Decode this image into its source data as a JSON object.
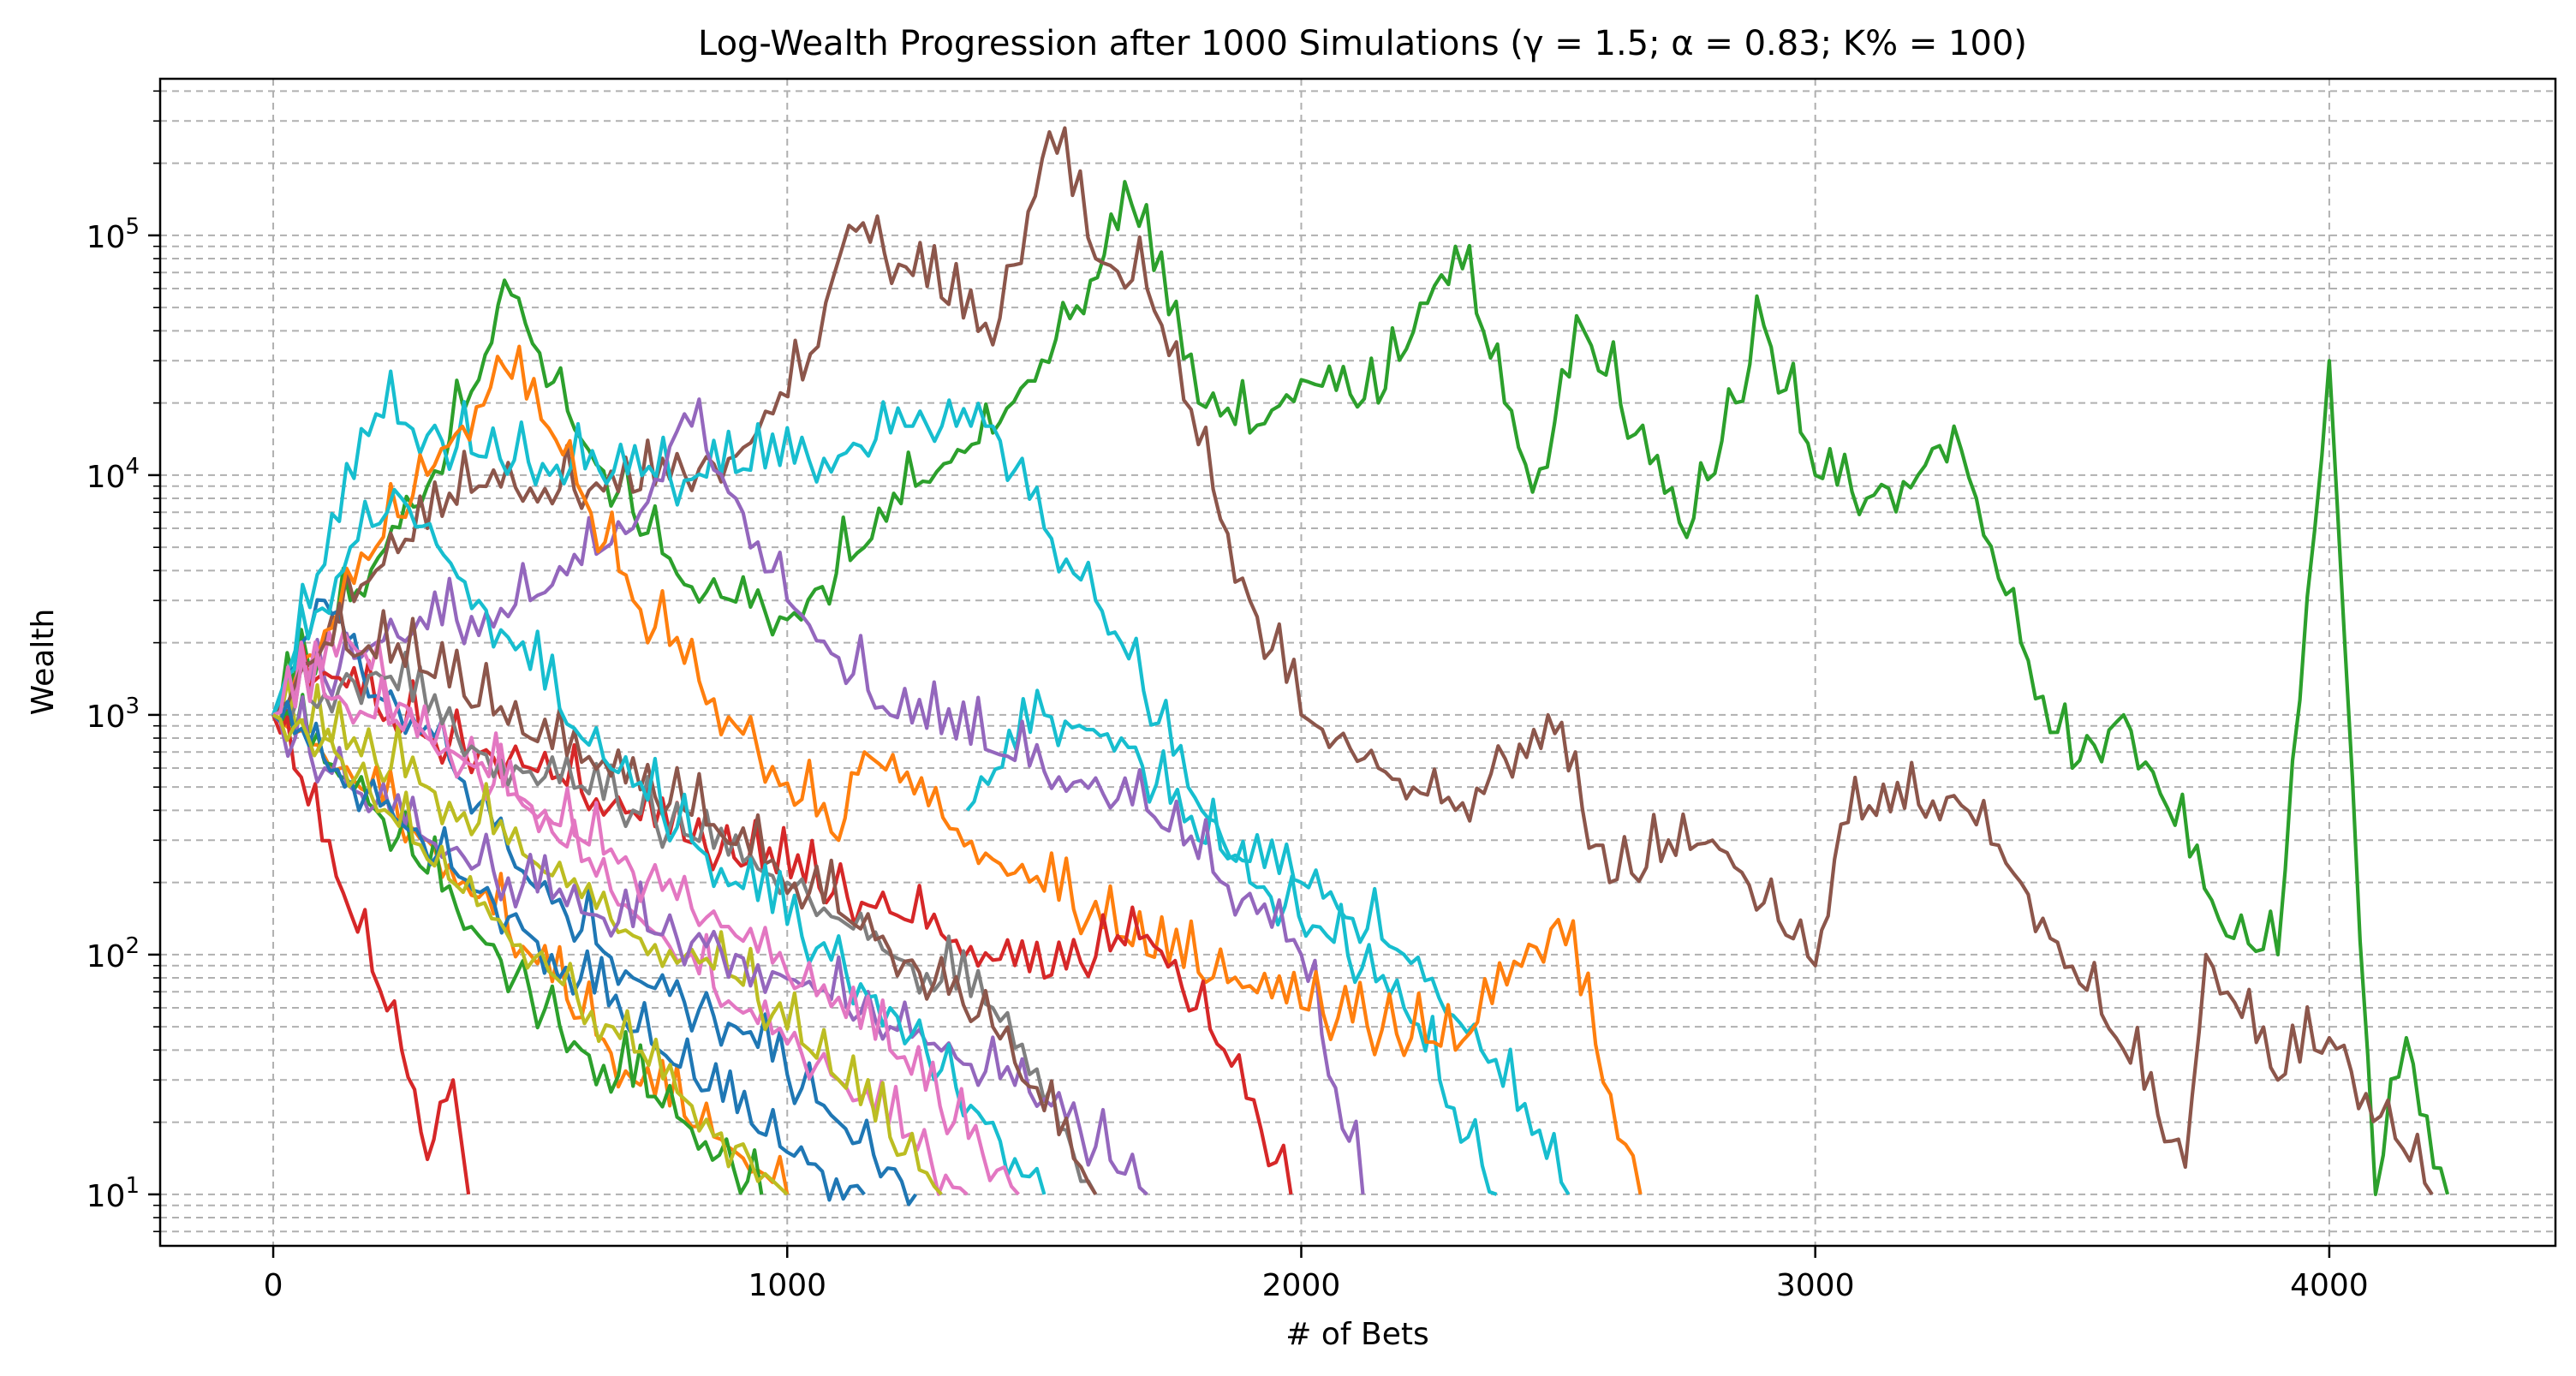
{
  "chart_data": {
    "type": "line",
    "title": "Log-Wealth Progression after 1000 Simulations (γ = 1.5; α = 0.83; K% = 100)",
    "xlabel": "# of Bets",
    "ylabel": "Wealth",
    "xlim": [
      -220,
      4440
    ],
    "ylim": [
      6.1,
      450000
    ],
    "yscale": "log",
    "grid": true,
    "x_ticks": [
      "0",
      "1000",
      "2000",
      "3000",
      "4000"
    ],
    "y_ticks": [
      "10^1",
      "10^2",
      "10^3",
      "10^4",
      "10^5"
    ],
    "series": [
      {
        "color": "#2ca02c",
        "points": [
          [
            0,
            1000
          ],
          [
            150,
            3000
          ],
          [
            300,
            9000
          ],
          [
            400,
            25000
          ],
          [
            450,
            65000
          ],
          [
            600,
            14000
          ],
          [
            800,
            3500
          ],
          [
            1000,
            2500
          ],
          [
            1150,
            5000
          ],
          [
            1250,
            9000
          ],
          [
            1400,
            15000
          ],
          [
            1550,
            45000
          ],
          [
            1670,
            135000
          ],
          [
            1800,
            20000
          ],
          [
            1900,
            15000
          ],
          [
            2000,
            25000
          ],
          [
            2150,
            20000
          ],
          [
            2300,
            90000
          ],
          [
            2450,
            8500
          ],
          [
            2550,
            40000
          ],
          [
            2750,
            5500
          ],
          [
            2900,
            42000
          ],
          [
            3000,
            10000
          ],
          [
            3100,
            8000
          ],
          [
            3200,
            10000
          ],
          [
            3270,
            16000
          ],
          [
            3400,
            2000
          ],
          [
            3500,
            600
          ],
          [
            3600,
            1000
          ],
          [
            3800,
            120
          ],
          [
            3900,
            100
          ],
          [
            4000,
            30000
          ],
          [
            4090,
            10
          ],
          [
            4150,
            45
          ],
          [
            4230,
            10
          ]
        ]
      },
      {
        "color": "#8c564b",
        "points": [
          [
            0,
            1000
          ],
          [
            200,
            4000
          ],
          [
            400,
            9000
          ],
          [
            700,
            8500
          ],
          [
            900,
            12000
          ],
          [
            1030,
            25000
          ],
          [
            1120,
            110000
          ],
          [
            1300,
            55000
          ],
          [
            1400,
            35000
          ],
          [
            1510,
            270000
          ],
          [
            1600,
            80000
          ],
          [
            1700,
            60000
          ],
          [
            1900,
            3000
          ],
          [
            2000,
            1000
          ],
          [
            2150,
            600
          ],
          [
            2300,
            400
          ],
          [
            2480,
            1000
          ],
          [
            2600,
            200
          ],
          [
            2800,
            300
          ],
          [
            3000,
            90
          ],
          [
            3050,
            350
          ],
          [
            3270,
            460
          ],
          [
            3400,
            200
          ],
          [
            3600,
            40
          ],
          [
            3720,
            13
          ],
          [
            3760,
            100
          ],
          [
            3900,
            30
          ],
          [
            4000,
            45
          ],
          [
            4200,
            10
          ]
        ]
      },
      {
        "color": "#17becf",
        "points": [
          [
            0,
            1000
          ],
          [
            200,
            18000
          ],
          [
            400,
            12000
          ],
          [
            800,
            9500
          ],
          [
            1100,
            12000
          ],
          [
            1230,
            16000
          ],
          [
            1400,
            16000
          ],
          [
            1500,
            6000
          ],
          [
            1600,
            3000
          ],
          [
            1650,
            2000
          ],
          [
            1780,
            500
          ],
          [
            1900,
            200
          ],
          [
            2050,
            120
          ],
          [
            2200,
            60
          ],
          [
            2380,
            10
          ]
        ]
      },
      {
        "color": "#17becf",
        "points": [
          [
            1350,
            400
          ],
          [
            1500,
            1000
          ],
          [
            1650,
            800
          ],
          [
            1800,
            300
          ],
          [
            2000,
            200
          ],
          [
            2200,
            100
          ],
          [
            2350,
            40
          ],
          [
            2520,
            10
          ]
        ]
      },
      {
        "color": "#9467bd",
        "points": [
          [
            0,
            1000
          ],
          [
            200,
            2000
          ],
          [
            500,
            3000
          ],
          [
            700,
            6000
          ],
          [
            800,
            18000
          ],
          [
            900,
            8000
          ],
          [
            1000,
            3000
          ],
          [
            1200,
            1000
          ],
          [
            1400,
            700
          ],
          [
            1700,
            400
          ],
          [
            2000,
            100
          ],
          [
            2120,
            10
          ]
        ]
      },
      {
        "color": "#ff7f0e",
        "points": [
          [
            0,
            1000
          ],
          [
            200,
            5000
          ],
          [
            300,
            10000
          ],
          [
            450,
            28000
          ],
          [
            550,
            14000
          ],
          [
            700,
            3000
          ],
          [
            900,
            900
          ],
          [
            1100,
            300
          ],
          [
            1150,
            700
          ],
          [
            1400,
            250
          ],
          [
            1700,
            100
          ],
          [
            2000,
            60
          ],
          [
            2300,
            40
          ],
          [
            2500,
            140
          ],
          [
            2660,
            10
          ]
        ]
      },
      {
        "color": "#d62728",
        "points": [
          [
            0,
            1000
          ],
          [
            100,
            1500
          ],
          [
            300,
            800
          ],
          [
            500,
            600
          ],
          [
            800,
            300
          ],
          [
            1200,
            150
          ],
          [
            1500,
            80
          ],
          [
            1700,
            120
          ],
          [
            1850,
            40
          ],
          [
            1980,
            10
          ]
        ]
      },
      {
        "color": "#1f77b4",
        "points": [
          [
            0,
            1000
          ],
          [
            100,
            3000
          ],
          [
            200,
            1200
          ],
          [
            300,
            900
          ],
          [
            500,
            200
          ],
          [
            700,
            80
          ],
          [
            900,
            50
          ],
          [
            1100,
            20
          ],
          [
            1250,
            10
          ]
        ]
      },
      {
        "color": "#e377c2",
        "points": [
          [
            0,
            1000
          ],
          [
            150,
            2000
          ],
          [
            300,
            800
          ],
          [
            500,
            400
          ],
          [
            700,
            150
          ],
          [
            900,
            60
          ],
          [
            1100,
            30
          ],
          [
            1350,
            10
          ]
        ]
      },
      {
        "color": "#bcbd22",
        "points": [
          [
            0,
            1000
          ],
          [
            100,
            800
          ],
          [
            300,
            500
          ],
          [
            500,
            250
          ],
          [
            700,
            120
          ],
          [
            900,
            80
          ],
          [
            1100,
            30
          ],
          [
            1300,
            10
          ]
        ]
      },
      {
        "color": "#7f7f7f",
        "points": [
          [
            0,
            1000
          ],
          [
            200,
            1500
          ],
          [
            400,
            700
          ],
          [
            700,
            400
          ],
          [
            1000,
            200
          ],
          [
            1200,
            100
          ],
          [
            1400,
            60
          ],
          [
            1600,
            10
          ]
        ]
      },
      {
        "color": "#ff7f0e",
        "points": [
          [
            0,
            1000
          ],
          [
            300,
            300
          ],
          [
            500,
            100
          ],
          [
            700,
            30
          ],
          [
            900,
            15
          ],
          [
            1000,
            10
          ]
        ]
      },
      {
        "color": "#2ca02c",
        "points": [
          [
            0,
            1000
          ],
          [
            200,
            400
          ],
          [
            400,
            120
          ],
          [
            600,
            40
          ],
          [
            800,
            20
          ],
          [
            950,
            10
          ]
        ]
      },
      {
        "color": "#d62728",
        "points": [
          [
            0,
            1000
          ],
          [
            150,
            150
          ],
          [
            250,
            40
          ],
          [
            300,
            14
          ],
          [
            350,
            30
          ],
          [
            380,
            10
          ]
        ]
      },
      {
        "color": "#9467bd",
        "points": [
          [
            0,
            1000
          ],
          [
            100,
            600
          ],
          [
            300,
            300
          ],
          [
            600,
            150
          ],
          [
            900,
            100
          ],
          [
            1200,
            50
          ],
          [
            1500,
            25
          ],
          [
            1700,
            10
          ]
        ]
      },
      {
        "color": "#8c564b",
        "points": [
          [
            0,
            1000
          ],
          [
            100,
            2000
          ],
          [
            300,
            1500
          ],
          [
            500,
            800
          ],
          [
            800,
            400
          ],
          [
            1100,
            150
          ],
          [
            1400,
            50
          ],
          [
            1600,
            10
          ]
        ]
      },
      {
        "color": "#17becf",
        "points": [
          [
            0,
            1000
          ],
          [
            150,
            5000
          ],
          [
            250,
            8000
          ],
          [
            400,
            3000
          ],
          [
            600,
            800
          ],
          [
            900,
            200
          ],
          [
            1200,
            60
          ],
          [
            1500,
            10
          ]
        ]
      },
      {
        "color": "#1f77b4",
        "points": [
          [
            0,
            1000
          ],
          [
            250,
            350
          ],
          [
            500,
            120
          ],
          [
            750,
            40
          ],
          [
            1000,
            15
          ],
          [
            1150,
            10
          ]
        ]
      },
      {
        "color": "#e377c2",
        "points": [
          [
            0,
            1000
          ],
          [
            100,
            1200
          ],
          [
            350,
            700
          ],
          [
            600,
            300
          ],
          [
            900,
            120
          ],
          [
            1200,
            40
          ],
          [
            1450,
            10
          ]
        ]
      },
      {
        "color": "#bcbd22",
        "points": [
          [
            0,
            1000
          ],
          [
            120,
            700
          ],
          [
            300,
            250
          ],
          [
            550,
            80
          ],
          [
            800,
            25
          ],
          [
            1000,
            10
          ]
        ]
      }
    ]
  }
}
